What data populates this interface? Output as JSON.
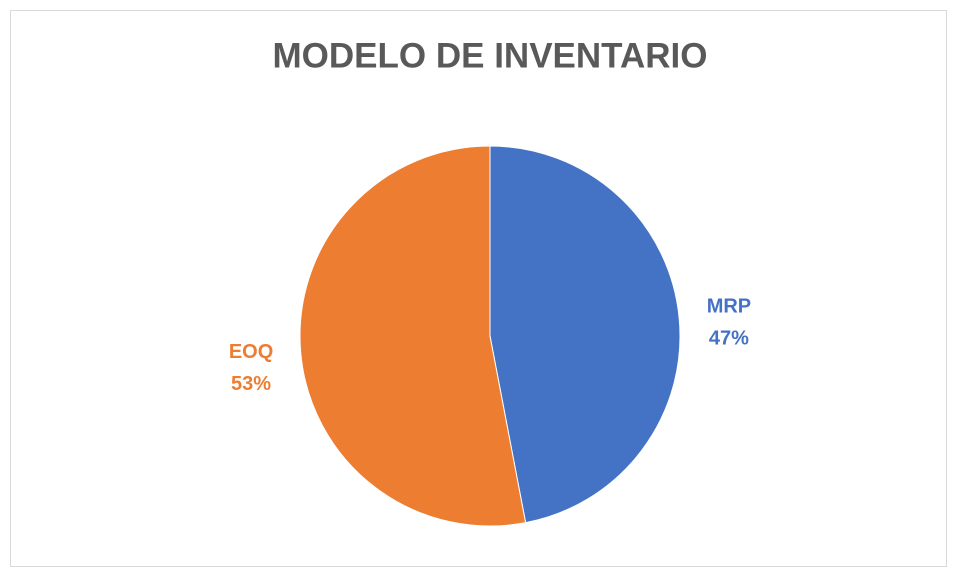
{
  "chart_data": {
    "type": "pie",
    "title": "MODELO DE INVENTARIO",
    "categories": [
      "MRP",
      "EOQ"
    ],
    "values": [
      47,
      53
    ],
    "value_labels": [
      "47%",
      "53%"
    ],
    "colors": [
      "#4472c4",
      "#ed7d31"
    ]
  }
}
